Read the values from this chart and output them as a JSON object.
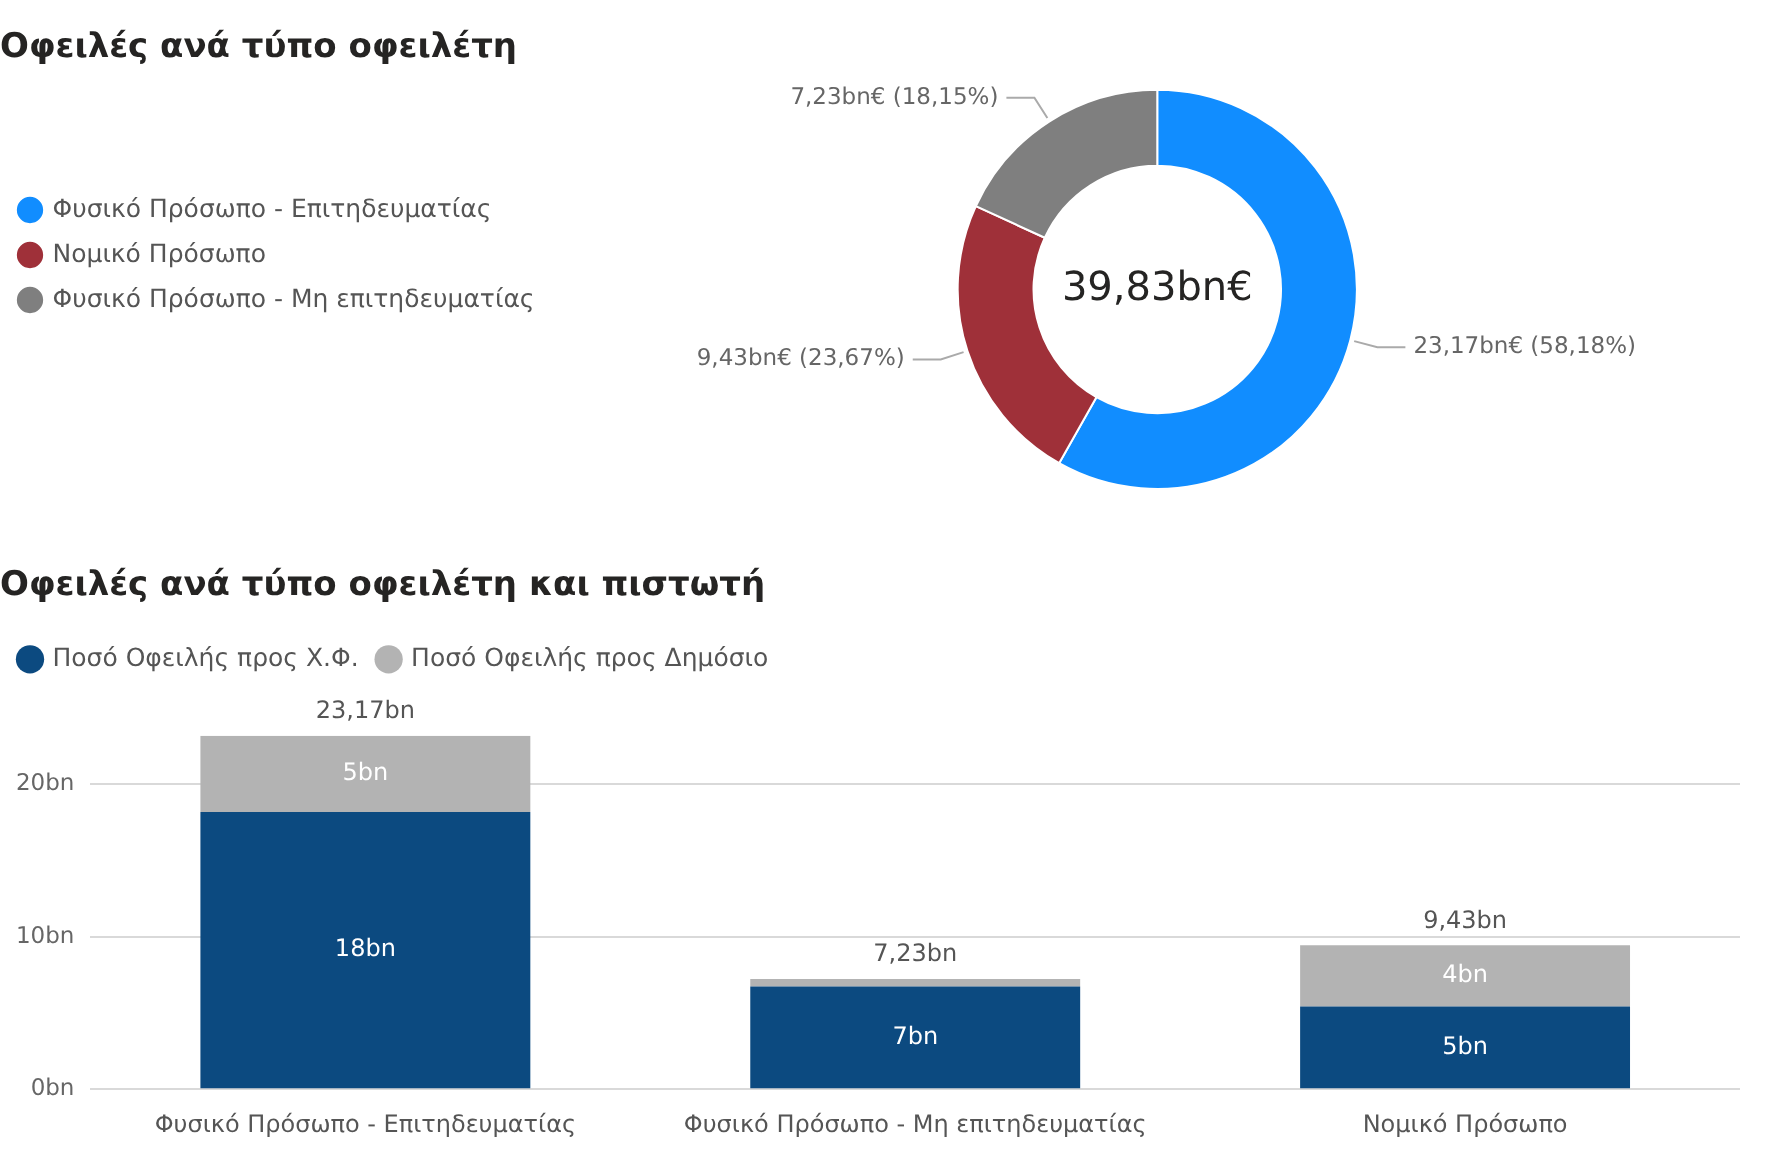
{
  "chart_data": [
    {
      "type": "donut",
      "title": "Οφειλές ανά τύπο οφειλέτη",
      "categories": [
        "Φυσικό Πρόσωπο - Επιτηδευματίας",
        "Νομικό Πρόσωπο",
        "Φυσικό Πρόσωπο - Μη επιτηδευματίας"
      ],
      "values": [
        58.18,
        23.67,
        18.15
      ],
      "colors": [
        "#118dff",
        "#9f3039",
        "#7f7f7f"
      ],
      "value_labels": [
        "23,17bn€ (58,18%)",
        "9,43bn€ (23,67%)",
        "7,23bn€ (18,15%)"
      ],
      "annotations": [
        "39,83bn€"
      ],
      "legend": "left"
    },
    {
      "type": "bar",
      "title": "Οφειλές ανά τύπο οφειλέτη και πιστωτή",
      "stacked": true,
      "categories": [
        "Φυσικό Πρόσωπο - Επιτηδευματίας",
        "Φυσικό Πρόσωπο - Μη επιτηδευματίας",
        "Νομικό Πρόσωπο"
      ],
      "series": [
        {
          "name": "Ποσό Οφειλής προς Χ.Φ.",
          "color": "#0c4a80",
          "values": [
            18.17,
            6.73,
            5.43
          ],
          "value_labels": [
            "18bn",
            "7bn",
            "5bn"
          ]
        },
        {
          "name": "Ποσό Οφειλής προς Δημόσιο",
          "color": "#b3b3b3",
          "values": [
            5,
            0.5,
            4
          ],
          "value_labels": [
            "5bn",
            null,
            "4bn"
          ]
        }
      ],
      "totals": [
        "23,17bn",
        "7,23bn",
        "9,43bn"
      ],
      "ylim": [
        0,
        23.17
      ],
      "yticks": [
        {
          "value": 0,
          "label": "0bn"
        },
        {
          "value": 10,
          "label": "10bn"
        },
        {
          "value": 20,
          "label": "20bn"
        }
      ],
      "grid": "y",
      "legend": "top left"
    }
  ]
}
